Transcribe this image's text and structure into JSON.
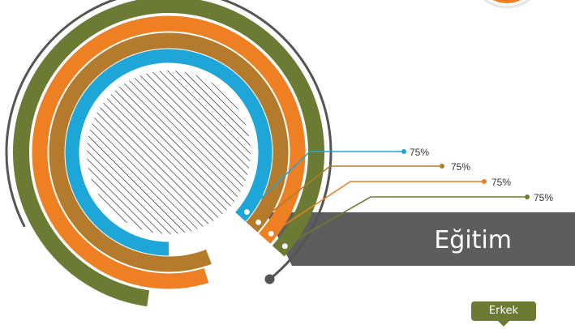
{
  "chart_data": {
    "type": "radial-bar",
    "title": "Eğitim",
    "series": [
      {
        "value": 75,
        "label": "75%",
        "color": "#1ea6d8"
      },
      {
        "value": 75,
        "label": "75%",
        "color": "#b57b2d"
      },
      {
        "value": 75,
        "label": "75%",
        "color": "#ee7f22"
      },
      {
        "value": 75,
        "label": "75%",
        "color": "#6b7b34"
      }
    ],
    "max": 100
  },
  "badge": {
    "label": "Erkek"
  },
  "colors": {
    "band": "#5d5d5d",
    "outer_ring": "#555555",
    "hatch": "#222222",
    "corner_circle": "#ee7f22"
  }
}
